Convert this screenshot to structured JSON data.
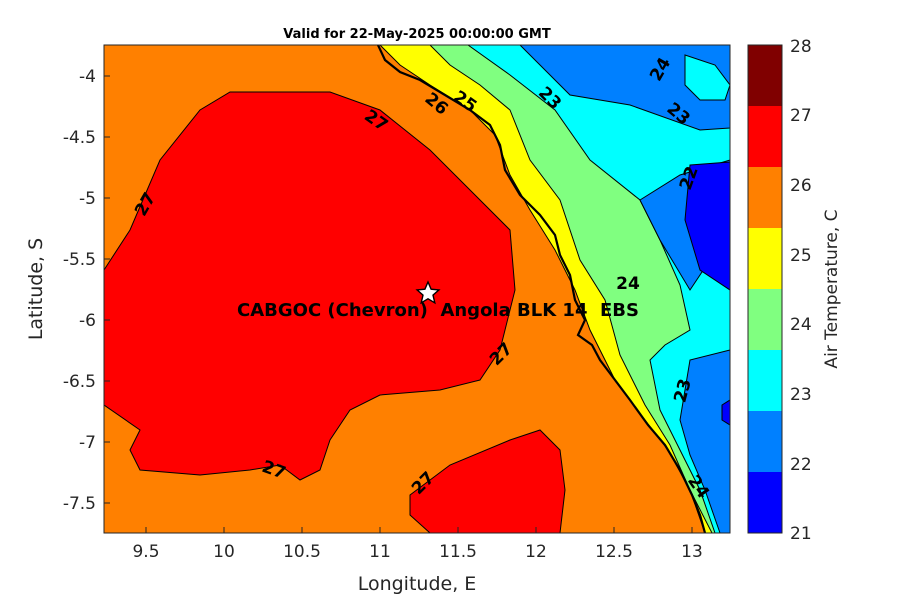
{
  "title": "Valid for 22-May-2025 00:00:00 GMT",
  "xlabel": "Longitude, E",
  "ylabel": "Latitude, S",
  "colorbar_label": "Air Temperature, C",
  "x_ticks": [
    "9.5",
    "10",
    "10.5",
    "11",
    "11.5",
    "12",
    "12.5",
    "13"
  ],
  "y_ticks": [
    "-4",
    "-4.5",
    "-5",
    "-5.5",
    "-6",
    "-6.5",
    "-7",
    "-7.5"
  ],
  "colorbar_ticks": [
    "21",
    "22",
    "23",
    "24",
    "25",
    "26",
    "27",
    "28"
  ],
  "colors": {
    "21-22": "#0000ff",
    "22-23": "#0080ff",
    "23-24": "#00ffff",
    "24-25": "#80ff80",
    "25-26": "#ffff00",
    "26-27": "#ff8000",
    "27-28": "#ff0000",
    "28": "#800000"
  },
  "site_label": "CABGOC (Chevron)  Angola BLK 14  EBS",
  "site_marker": "star-icon",
  "chart_data": {
    "type": "heatmap",
    "xlim": [
      9.25,
      13.25
    ],
    "ylim": [
      -7.75,
      -3.75
    ],
    "clim": [
      21,
      28
    ],
    "contour_labels": [
      "27",
      "27",
      "27",
      "27",
      "27",
      "26",
      "25",
      "23",
      "24",
      "23",
      "22",
      "24",
      "23",
      "24"
    ]
  }
}
